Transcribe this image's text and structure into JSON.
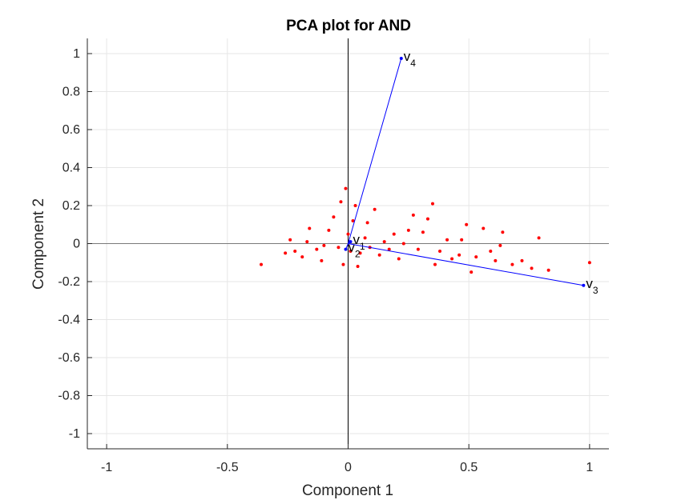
{
  "chart_data": {
    "type": "scatter",
    "title": "PCA plot for AND",
    "xlabel": "Component 1",
    "ylabel": "Component 2",
    "xlim": [
      -1.08,
      1.08
    ],
    "ylim": [
      -1.08,
      1.08
    ],
    "xticks": [
      -1,
      -0.5,
      0,
      0.5,
      1
    ],
    "xtick_labels": [
      "-1",
      "-0.5",
      "0",
      "0.5",
      "1"
    ],
    "yticks": [
      -1,
      -0.8,
      -0.6,
      -0.4,
      -0.2,
      0,
      0.2,
      0.4,
      0.6,
      0.8,
      1
    ],
    "ytick_labels": [
      "-1",
      "-0.8",
      "-0.6",
      "-0.4",
      "-0.2",
      "0",
      "0.2",
      "0.4",
      "0.6",
      "0.8",
      "1"
    ],
    "grid": true,
    "colors": {
      "vectors": "#0000ff",
      "scores": "#ff0000",
      "axes": "#000000",
      "grid": "#e6e6e6"
    },
    "vectors": [
      {
        "base": "v",
        "sub": "1",
        "x": 0.01,
        "y": 0.01
      },
      {
        "base": "v",
        "sub": "2",
        "x": -0.01,
        "y": -0.03
      },
      {
        "base": "v",
        "sub": "3",
        "x": 0.975,
        "y": -0.22
      },
      {
        "base": "v",
        "sub": "4",
        "x": 0.22,
        "y": 0.975
      }
    ],
    "scores": [
      [
        -0.36,
        -0.11
      ],
      [
        -0.26,
        -0.05
      ],
      [
        -0.24,
        0.02
      ],
      [
        -0.22,
        -0.04
      ],
      [
        -0.19,
        -0.07
      ],
      [
        -0.17,
        0.01
      ],
      [
        -0.16,
        0.08
      ],
      [
        -0.13,
        -0.03
      ],
      [
        -0.11,
        -0.09
      ],
      [
        -0.1,
        -0.01
      ],
      [
        -0.08,
        0.07
      ],
      [
        -0.06,
        0.14
      ],
      [
        -0.04,
        -0.02
      ],
      [
        -0.03,
        0.22
      ],
      [
        -0.02,
        -0.11
      ],
      [
        -0.01,
        0.29
      ],
      [
        0.0,
        0.05
      ],
      [
        0.01,
        -0.04
      ],
      [
        0.02,
        0.12
      ],
      [
        0.03,
        0.2
      ],
      [
        0.04,
        -0.12
      ],
      [
        0.05,
        -0.05
      ],
      [
        0.07,
        0.03
      ],
      [
        0.08,
        0.11
      ],
      [
        0.09,
        -0.02
      ],
      [
        0.11,
        0.18
      ],
      [
        0.13,
        -0.06
      ],
      [
        0.15,
        0.01
      ],
      [
        0.17,
        -0.03
      ],
      [
        0.19,
        0.05
      ],
      [
        0.21,
        -0.08
      ],
      [
        0.23,
        0.0
      ],
      [
        0.25,
        0.07
      ],
      [
        0.27,
        0.15
      ],
      [
        0.29,
        -0.03
      ],
      [
        0.31,
        0.06
      ],
      [
        0.33,
        0.13
      ],
      [
        0.35,
        0.21
      ],
      [
        0.36,
        -0.11
      ],
      [
        0.38,
        -0.04
      ],
      [
        0.41,
        0.02
      ],
      [
        0.43,
        -0.08
      ],
      [
        0.46,
        -0.06
      ],
      [
        0.47,
        0.02
      ],
      [
        0.49,
        0.1
      ],
      [
        0.51,
        -0.15
      ],
      [
        0.53,
        -0.07
      ],
      [
        0.56,
        0.08
      ],
      [
        0.59,
        -0.04
      ],
      [
        0.61,
        -0.09
      ],
      [
        0.63,
        -0.01
      ],
      [
        0.64,
        0.06
      ],
      [
        0.68,
        -0.11
      ],
      [
        0.72,
        -0.09
      ],
      [
        0.76,
        -0.13
      ],
      [
        0.79,
        0.03
      ],
      [
        0.83,
        -0.14
      ],
      [
        1.0,
        -0.1
      ]
    ]
  }
}
